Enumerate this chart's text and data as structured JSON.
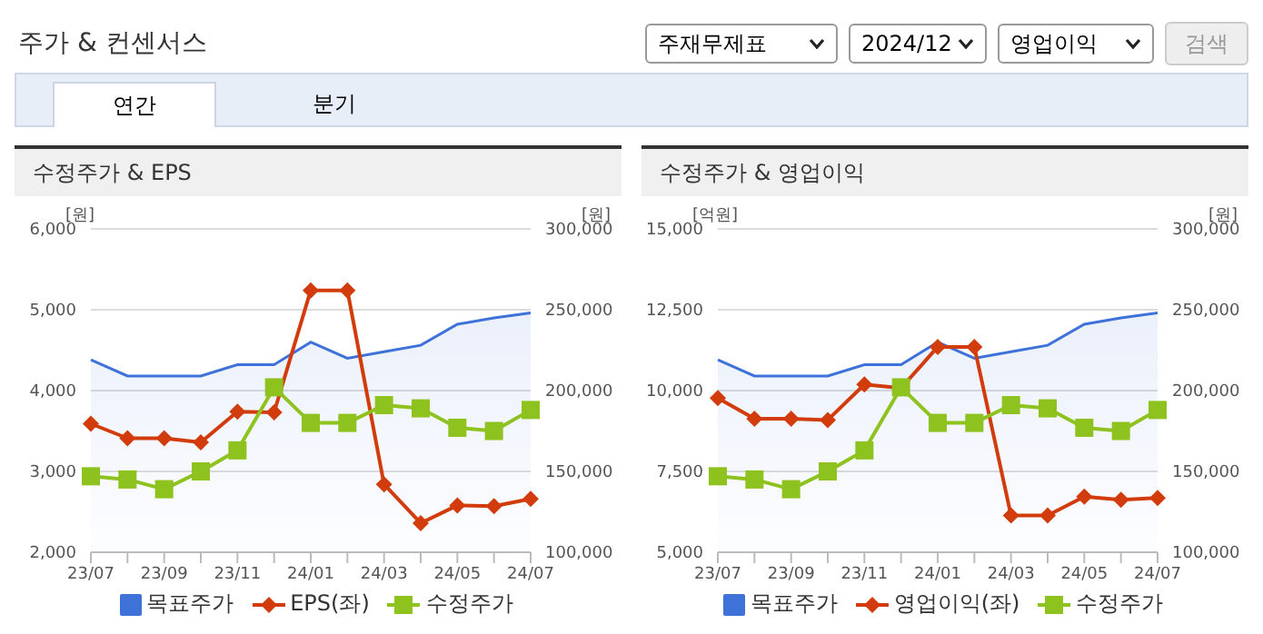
{
  "chart_data": [
    {
      "type": "other",
      "title": "주가 & 컨센서스",
      "annotations": [
        "주재무제표",
        "2024/12",
        "영업이익",
        "검색",
        "연간",
        "분기"
      ]
    },
    {
      "type": "line",
      "title": "수정주가 & EPS",
      "ylabel": "[원]",
      "y2label": "[원]",
      "categories": [
        "23/07",
        null,
        "23/09",
        null,
        "23/11",
        null,
        "24/01",
        null,
        "24/03",
        null,
        "24/05",
        null,
        "24/07"
      ],
      "series": [
        {
          "name": "목표주가",
          "type": "area",
          "axis": "y2",
          "color": "#3f72d9",
          "marker": "none",
          "values": [
            219000,
            209000,
            209000,
            209000,
            216000,
            216000,
            230000,
            220000,
            224000,
            228000,
            241000,
            245000,
            248000
          ]
        },
        {
          "name": "EPS(좌)",
          "type": "line",
          "color": "#d23c0c",
          "marker": "diamond",
          "values": [
            3590,
            3410,
            3410,
            3360,
            3740,
            3730,
            5240,
            5240,
            2840,
            2360,
            2580,
            2570,
            2660
          ]
        },
        {
          "name": "수정주가",
          "type": "line",
          "axis": "y2",
          "color": "#8dc21f",
          "marker": "square",
          "values": [
            147000,
            145000,
            139000,
            150000,
            163000,
            202000,
            180000,
            180000,
            191000,
            189000,
            177000,
            175000,
            188000
          ]
        }
      ],
      "ylim": [
        2000,
        6000
      ],
      "yticks": [
        {
          "value": 2000,
          "label": "2,000"
        },
        {
          "value": 3000,
          "label": "3,000"
        },
        {
          "value": 4000,
          "label": "4,000"
        },
        {
          "value": 5000,
          "label": "5,000"
        },
        {
          "value": 6000,
          "label": "6,000"
        }
      ],
      "y2lim": [
        100000,
        300000
      ],
      "y2ticks": [
        {
          "value": 100000,
          "label": "100,000"
        },
        {
          "value": 150000,
          "label": "150,000"
        },
        {
          "value": 200000,
          "label": "200,000"
        },
        {
          "value": 250000,
          "label": "250,000"
        },
        {
          "value": 300000,
          "label": "300,000"
        }
      ],
      "grid": "y",
      "legend": "bottom"
    },
    {
      "type": "line",
      "title": "수정주가 & 영업이익",
      "ylabel": "[억원]",
      "y2label": "[원]",
      "categories": [
        "23/07",
        null,
        "23/09",
        null,
        "23/11",
        null,
        "24/01",
        null,
        "24/03",
        null,
        "24/05",
        null,
        "24/07"
      ],
      "series": [
        {
          "name": "목표주가",
          "type": "area",
          "axis": "y2",
          "color": "#3f72d9",
          "marker": "none",
          "values": [
            219000,
            209000,
            209000,
            209000,
            216000,
            216000,
            230000,
            220000,
            224000,
            228000,
            241000,
            245000,
            248000
          ]
        },
        {
          "name": "영업이익(좌)",
          "type": "line",
          "color": "#d23c0c",
          "marker": "diamond",
          "values": [
            9770,
            9130,
            9130,
            9090,
            10190,
            10080,
            11350,
            11350,
            6140,
            6140,
            6720,
            6620,
            6680
          ]
        },
        {
          "name": "수정주가",
          "type": "line",
          "axis": "y2",
          "color": "#8dc21f",
          "marker": "square",
          "values": [
            147000,
            145000,
            139000,
            150000,
            163000,
            202000,
            180000,
            180000,
            191000,
            189000,
            177000,
            175000,
            188000
          ]
        }
      ],
      "ylim": [
        5000,
        15000
      ],
      "yticks": [
        {
          "value": 5000,
          "label": "5,000"
        },
        {
          "value": 7500,
          "label": "7,500"
        },
        {
          "value": 10000,
          "label": "10,000"
        },
        {
          "value": 12500,
          "label": "12,500"
        },
        {
          "value": 15000,
          "label": "15,000"
        }
      ],
      "y2lim": [
        100000,
        300000
      ],
      "y2ticks": [
        {
          "value": 100000,
          "label": "100,000"
        },
        {
          "value": 150000,
          "label": "150,000"
        },
        {
          "value": 200000,
          "label": "200,000"
        },
        {
          "value": 250000,
          "label": "250,000"
        },
        {
          "value": 300000,
          "label": "300,000"
        }
      ],
      "grid": "y",
      "legend": "bottom"
    }
  ]
}
